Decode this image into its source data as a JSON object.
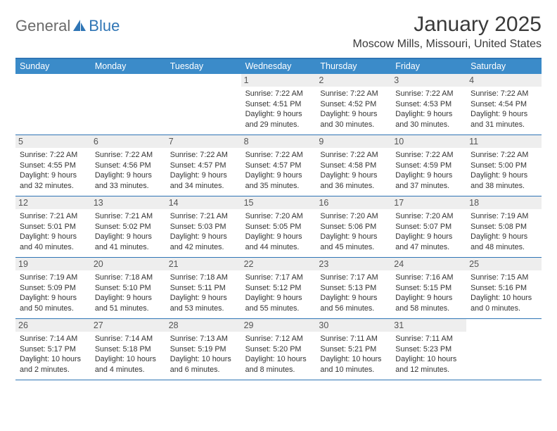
{
  "brand": {
    "part1": "General",
    "part2": "Blue"
  },
  "title": "January 2025",
  "subtitle": "Moscow Mills, Missouri, United States",
  "colors": {
    "header_bg": "#3b8bc9",
    "accent": "#2f75b5",
    "daynum_bg": "#eeeeee",
    "text": "#333333"
  },
  "day_names": [
    "Sunday",
    "Monday",
    "Tuesday",
    "Wednesday",
    "Thursday",
    "Friday",
    "Saturday"
  ],
  "weeks": [
    [
      {
        "n": "",
        "sr": "",
        "ss": "",
        "dl": ""
      },
      {
        "n": "",
        "sr": "",
        "ss": "",
        "dl": ""
      },
      {
        "n": "",
        "sr": "",
        "ss": "",
        "dl": ""
      },
      {
        "n": "1",
        "sr": "Sunrise: 7:22 AM",
        "ss": "Sunset: 4:51 PM",
        "dl": "Daylight: 9 hours and 29 minutes."
      },
      {
        "n": "2",
        "sr": "Sunrise: 7:22 AM",
        "ss": "Sunset: 4:52 PM",
        "dl": "Daylight: 9 hours and 30 minutes."
      },
      {
        "n": "3",
        "sr": "Sunrise: 7:22 AM",
        "ss": "Sunset: 4:53 PM",
        "dl": "Daylight: 9 hours and 30 minutes."
      },
      {
        "n": "4",
        "sr": "Sunrise: 7:22 AM",
        "ss": "Sunset: 4:54 PM",
        "dl": "Daylight: 9 hours and 31 minutes."
      }
    ],
    [
      {
        "n": "5",
        "sr": "Sunrise: 7:22 AM",
        "ss": "Sunset: 4:55 PM",
        "dl": "Daylight: 9 hours and 32 minutes."
      },
      {
        "n": "6",
        "sr": "Sunrise: 7:22 AM",
        "ss": "Sunset: 4:56 PM",
        "dl": "Daylight: 9 hours and 33 minutes."
      },
      {
        "n": "7",
        "sr": "Sunrise: 7:22 AM",
        "ss": "Sunset: 4:57 PM",
        "dl": "Daylight: 9 hours and 34 minutes."
      },
      {
        "n": "8",
        "sr": "Sunrise: 7:22 AM",
        "ss": "Sunset: 4:57 PM",
        "dl": "Daylight: 9 hours and 35 minutes."
      },
      {
        "n": "9",
        "sr": "Sunrise: 7:22 AM",
        "ss": "Sunset: 4:58 PM",
        "dl": "Daylight: 9 hours and 36 minutes."
      },
      {
        "n": "10",
        "sr": "Sunrise: 7:22 AM",
        "ss": "Sunset: 4:59 PM",
        "dl": "Daylight: 9 hours and 37 minutes."
      },
      {
        "n": "11",
        "sr": "Sunrise: 7:22 AM",
        "ss": "Sunset: 5:00 PM",
        "dl": "Daylight: 9 hours and 38 minutes."
      }
    ],
    [
      {
        "n": "12",
        "sr": "Sunrise: 7:21 AM",
        "ss": "Sunset: 5:01 PM",
        "dl": "Daylight: 9 hours and 40 minutes."
      },
      {
        "n": "13",
        "sr": "Sunrise: 7:21 AM",
        "ss": "Sunset: 5:02 PM",
        "dl": "Daylight: 9 hours and 41 minutes."
      },
      {
        "n": "14",
        "sr": "Sunrise: 7:21 AM",
        "ss": "Sunset: 5:03 PM",
        "dl": "Daylight: 9 hours and 42 minutes."
      },
      {
        "n": "15",
        "sr": "Sunrise: 7:20 AM",
        "ss": "Sunset: 5:05 PM",
        "dl": "Daylight: 9 hours and 44 minutes."
      },
      {
        "n": "16",
        "sr": "Sunrise: 7:20 AM",
        "ss": "Sunset: 5:06 PM",
        "dl": "Daylight: 9 hours and 45 minutes."
      },
      {
        "n": "17",
        "sr": "Sunrise: 7:20 AM",
        "ss": "Sunset: 5:07 PM",
        "dl": "Daylight: 9 hours and 47 minutes."
      },
      {
        "n": "18",
        "sr": "Sunrise: 7:19 AM",
        "ss": "Sunset: 5:08 PM",
        "dl": "Daylight: 9 hours and 48 minutes."
      }
    ],
    [
      {
        "n": "19",
        "sr": "Sunrise: 7:19 AM",
        "ss": "Sunset: 5:09 PM",
        "dl": "Daylight: 9 hours and 50 minutes."
      },
      {
        "n": "20",
        "sr": "Sunrise: 7:18 AM",
        "ss": "Sunset: 5:10 PM",
        "dl": "Daylight: 9 hours and 51 minutes."
      },
      {
        "n": "21",
        "sr": "Sunrise: 7:18 AM",
        "ss": "Sunset: 5:11 PM",
        "dl": "Daylight: 9 hours and 53 minutes."
      },
      {
        "n": "22",
        "sr": "Sunrise: 7:17 AM",
        "ss": "Sunset: 5:12 PM",
        "dl": "Daylight: 9 hours and 55 minutes."
      },
      {
        "n": "23",
        "sr": "Sunrise: 7:17 AM",
        "ss": "Sunset: 5:13 PM",
        "dl": "Daylight: 9 hours and 56 minutes."
      },
      {
        "n": "24",
        "sr": "Sunrise: 7:16 AM",
        "ss": "Sunset: 5:15 PM",
        "dl": "Daylight: 9 hours and 58 minutes."
      },
      {
        "n": "25",
        "sr": "Sunrise: 7:15 AM",
        "ss": "Sunset: 5:16 PM",
        "dl": "Daylight: 10 hours and 0 minutes."
      }
    ],
    [
      {
        "n": "26",
        "sr": "Sunrise: 7:14 AM",
        "ss": "Sunset: 5:17 PM",
        "dl": "Daylight: 10 hours and 2 minutes."
      },
      {
        "n": "27",
        "sr": "Sunrise: 7:14 AM",
        "ss": "Sunset: 5:18 PM",
        "dl": "Daylight: 10 hours and 4 minutes."
      },
      {
        "n": "28",
        "sr": "Sunrise: 7:13 AM",
        "ss": "Sunset: 5:19 PM",
        "dl": "Daylight: 10 hours and 6 minutes."
      },
      {
        "n": "29",
        "sr": "Sunrise: 7:12 AM",
        "ss": "Sunset: 5:20 PM",
        "dl": "Daylight: 10 hours and 8 minutes."
      },
      {
        "n": "30",
        "sr": "Sunrise: 7:11 AM",
        "ss": "Sunset: 5:21 PM",
        "dl": "Daylight: 10 hours and 10 minutes."
      },
      {
        "n": "31",
        "sr": "Sunrise: 7:11 AM",
        "ss": "Sunset: 5:23 PM",
        "dl": "Daylight: 10 hours and 12 minutes."
      },
      {
        "n": "",
        "sr": "",
        "ss": "",
        "dl": ""
      }
    ]
  ]
}
